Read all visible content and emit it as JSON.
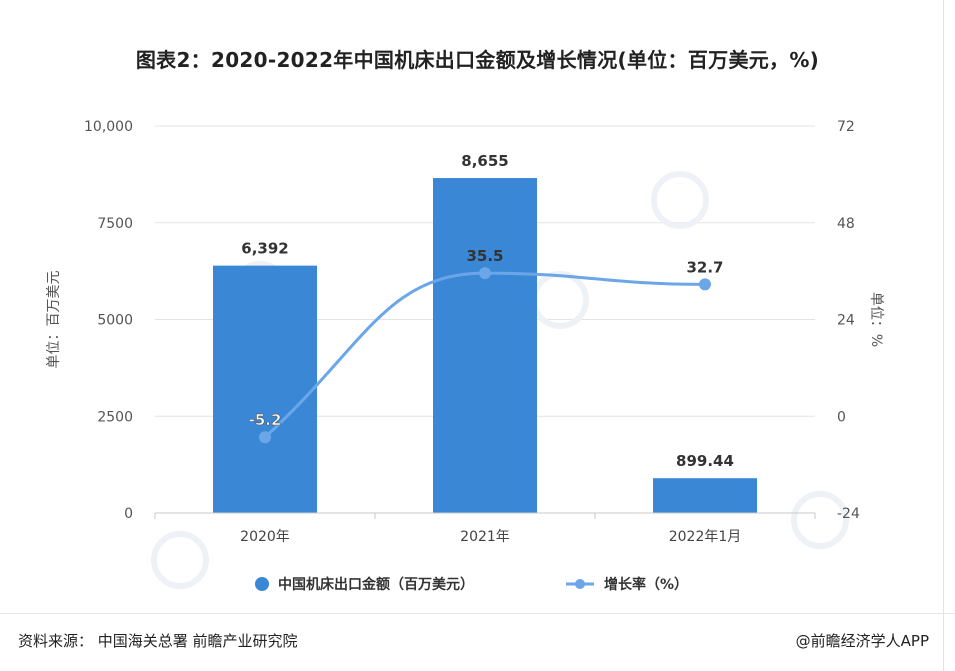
{
  "title": "图表2：2020-2022年中国机床出口金额及增长情况(单位：百万美元，%)",
  "footer": {
    "source": "资料来源：  中国海关总署 前瞻产业研究院",
    "brand": "@前瞻经济学人APP"
  },
  "chart_data": {
    "type": "bar",
    "categories": [
      "2020年",
      "2021年",
      "2022年1月"
    ],
    "series": [
      {
        "name": "中国机床出口金额（百万美元）",
        "type": "bar",
        "values": [
          6392,
          8655,
          899.44
        ],
        "labels": [
          "6,392",
          "8,655",
          "899.44"
        ],
        "color": "#3a87d6"
      },
      {
        "name": "增长率（%）",
        "type": "line",
        "axis": "right",
        "values": [
          -5.2,
          35.5,
          32.7
        ],
        "labels": [
          "-5.2",
          "35.5",
          "32.7"
        ],
        "color": "#6aa6e8"
      }
    ],
    "ylabel": "单位：百万美元",
    "y2label": "单位：%",
    "ylim": [
      0,
      10000
    ],
    "y2lim": [
      -24,
      72
    ],
    "yticks": [
      "0",
      "2500",
      "5000",
      "7500",
      "10,000"
    ],
    "y2ticks": [
      "-24",
      "0",
      "24",
      "48",
      "72"
    ],
    "legend_position": "bottom",
    "grid": true
  }
}
